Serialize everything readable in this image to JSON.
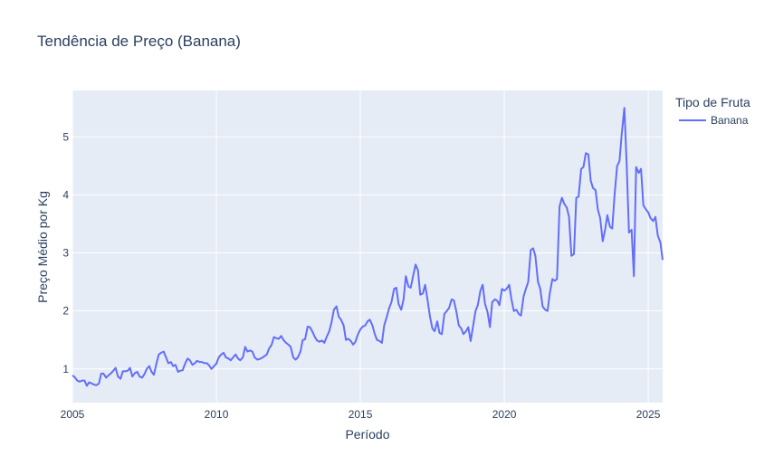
{
  "chart_data": {
    "type": "line",
    "title": "Tendência de Preço (Banana)",
    "xlabel": "Período",
    "ylabel": "Preço Médio por Kg",
    "xlim": [
      2005.0,
      2025.5
    ],
    "ylim": [
      0.42,
      5.8
    ],
    "x_ticks": [
      2005,
      2010,
      2015,
      2020,
      2025
    ],
    "y_ticks": [
      1,
      2,
      3,
      4,
      5
    ],
    "x_tick_labels": [
      "2005",
      "2010",
      "2015",
      "2020",
      "2025"
    ],
    "y_tick_labels": [
      "1",
      "2",
      "3",
      "4",
      "5"
    ],
    "grid": true,
    "legend": {
      "title": "Tipo de Fruta",
      "placement": "right",
      "entries": [
        "Banana"
      ]
    },
    "series": [
      {
        "name": "Banana",
        "color": "#636efa",
        "x": [
          2005.0,
          2005.08,
          2005.17,
          2005.25,
          2005.33,
          2005.42,
          2005.5,
          2005.58,
          2005.67,
          2005.75,
          2005.83,
          2005.92,
          2006.0,
          2006.08,
          2006.17,
          2006.25,
          2006.33,
          2006.42,
          2006.5,
          2006.58,
          2006.67,
          2006.75,
          2006.83,
          2006.92,
          2007.0,
          2007.08,
          2007.17,
          2007.25,
          2007.33,
          2007.42,
          2007.5,
          2007.58,
          2007.67,
          2007.75,
          2007.83,
          2007.92,
          2008.0,
          2008.08,
          2008.17,
          2008.25,
          2008.33,
          2008.42,
          2008.5,
          2008.58,
          2008.67,
          2008.75,
          2008.83,
          2008.92,
          2009.0,
          2009.08,
          2009.17,
          2009.25,
          2009.33,
          2009.42,
          2009.5,
          2009.58,
          2009.67,
          2009.75,
          2009.83,
          2009.92,
          2010.0,
          2010.08,
          2010.17,
          2010.25,
          2010.33,
          2010.42,
          2010.5,
          2010.58,
          2010.67,
          2010.75,
          2010.83,
          2010.92,
          2011.0,
          2011.08,
          2011.17,
          2011.25,
          2011.33,
          2011.42,
          2011.5,
          2011.58,
          2011.67,
          2011.75,
          2011.83,
          2011.92,
          2012.0,
          2012.08,
          2012.17,
          2012.25,
          2012.33,
          2012.42,
          2012.5,
          2012.58,
          2012.67,
          2012.75,
          2012.83,
          2012.92,
          2013.0,
          2013.08,
          2013.17,
          2013.25,
          2013.33,
          2013.42,
          2013.5,
          2013.58,
          2013.67,
          2013.75,
          2013.83,
          2013.92,
          2014.0,
          2014.08,
          2014.17,
          2014.25,
          2014.33,
          2014.42,
          2014.5,
          2014.58,
          2014.67,
          2014.75,
          2014.83,
          2014.92,
          2015.0,
          2015.08,
          2015.17,
          2015.25,
          2015.33,
          2015.42,
          2015.5,
          2015.58,
          2015.67,
          2015.75,
          2015.83,
          2015.92,
          2016.0,
          2016.08,
          2016.17,
          2016.25,
          2016.33,
          2016.42,
          2016.5,
          2016.58,
          2016.67,
          2016.75,
          2016.83,
          2016.92,
          2017.0,
          2017.08,
          2017.17,
          2017.25,
          2017.33,
          2017.42,
          2017.5,
          2017.58,
          2017.67,
          2017.75,
          2017.83,
          2017.92,
          2018.0,
          2018.08,
          2018.17,
          2018.25,
          2018.33,
          2018.42,
          2018.5,
          2018.58,
          2018.67,
          2018.75,
          2018.83,
          2018.92,
          2019.0,
          2019.08,
          2019.17,
          2019.25,
          2019.33,
          2019.42,
          2019.5,
          2019.58,
          2019.67,
          2019.75,
          2019.83,
          2019.92,
          2020.0,
          2020.08,
          2020.17,
          2020.25,
          2020.33,
          2020.42,
          2020.5,
          2020.58,
          2020.67,
          2020.75,
          2020.83,
          2020.92,
          2021.0,
          2021.08,
          2021.17,
          2021.25,
          2021.33,
          2021.42,
          2021.5,
          2021.58,
          2021.67,
          2021.75,
          2021.83,
          2021.92,
          2022.0,
          2022.08,
          2022.17,
          2022.25,
          2022.33,
          2022.42,
          2022.5,
          2022.58,
          2022.67,
          2022.75,
          2022.83,
          2022.92,
          2023.0,
          2023.08,
          2023.17,
          2023.25,
          2023.33,
          2023.42,
          2023.5,
          2023.58,
          2023.67,
          2023.75,
          2023.83,
          2023.92,
          2024.0,
          2024.08,
          2024.17,
          2024.25,
          2024.33,
          2024.42,
          2024.5,
          2024.58,
          2024.67,
          2024.75,
          2024.83,
          2024.92,
          2025.0,
          2025.08,
          2025.17,
          2025.25,
          2025.33,
          2025.42,
          2025.5
        ],
        "y": [
          0.89,
          0.86,
          0.8,
          0.78,
          0.8,
          0.8,
          0.71,
          0.77,
          0.75,
          0.73,
          0.72,
          0.75,
          0.92,
          0.92,
          0.85,
          0.89,
          0.92,
          0.97,
          1.02,
          0.87,
          0.83,
          0.96,
          0.96,
          0.97,
          1.02,
          0.87,
          0.93,
          0.95,
          0.87,
          0.85,
          0.91,
          1.0,
          1.05,
          0.95,
          0.9,
          1.1,
          1.25,
          1.28,
          1.3,
          1.2,
          1.1,
          1.12,
          1.05,
          1.07,
          0.95,
          0.97,
          0.98,
          1.1,
          1.18,
          1.15,
          1.07,
          1.1,
          1.14,
          1.12,
          1.12,
          1.1,
          1.1,
          1.06,
          1.0,
          1.05,
          1.09,
          1.2,
          1.25,
          1.28,
          1.2,
          1.18,
          1.15,
          1.2,
          1.25,
          1.18,
          1.15,
          1.2,
          1.38,
          1.3,
          1.32,
          1.3,
          1.2,
          1.16,
          1.17,
          1.19,
          1.22,
          1.25,
          1.35,
          1.42,
          1.55,
          1.53,
          1.52,
          1.57,
          1.5,
          1.45,
          1.42,
          1.38,
          1.2,
          1.16,
          1.2,
          1.3,
          1.5,
          1.51,
          1.73,
          1.72,
          1.65,
          1.55,
          1.49,
          1.47,
          1.49,
          1.45,
          1.55,
          1.65,
          1.8,
          2.02,
          2.08,
          1.9,
          1.85,
          1.75,
          1.5,
          1.52,
          1.48,
          1.42,
          1.47,
          1.6,
          1.68,
          1.73,
          1.75,
          1.82,
          1.85,
          1.75,
          1.6,
          1.5,
          1.48,
          1.45,
          1.75,
          1.9,
          2.05,
          2.15,
          2.38,
          2.4,
          2.12,
          2.02,
          2.2,
          2.6,
          2.42,
          2.4,
          2.6,
          2.8,
          2.7,
          2.28,
          2.3,
          2.45,
          2.2,
          1.9,
          1.7,
          1.65,
          1.82,
          1.62,
          1.6,
          1.95,
          2.0,
          2.05,
          2.2,
          2.18,
          2.0,
          1.75,
          1.7,
          1.6,
          1.65,
          1.72,
          1.48,
          1.75,
          2.0,
          2.1,
          2.35,
          2.45,
          2.12,
          1.98,
          1.72,
          2.15,
          2.2,
          2.18,
          2.1,
          2.38,
          2.35,
          2.38,
          2.45,
          2.2,
          2.0,
          2.02,
          1.95,
          1.92,
          2.25,
          2.38,
          2.5,
          3.05,
          3.08,
          2.95,
          2.5,
          2.38,
          2.08,
          2.02,
          2.0,
          2.3,
          2.55,
          2.52,
          2.55,
          3.8,
          3.95,
          3.85,
          3.78,
          3.62,
          2.95,
          2.98,
          3.95,
          3.97,
          4.45,
          4.48,
          4.72,
          4.7,
          4.25,
          4.12,
          4.08,
          3.75,
          3.6,
          3.2,
          3.4,
          3.65,
          3.45,
          3.42,
          4.0,
          4.5,
          4.58,
          5.05,
          5.5,
          4.55,
          3.35,
          3.4,
          2.6,
          4.48,
          4.38,
          4.45,
          3.82,
          3.75,
          3.7,
          3.6,
          3.55,
          3.62,
          3.3,
          3.18,
          2.88
        ]
      }
    ]
  }
}
